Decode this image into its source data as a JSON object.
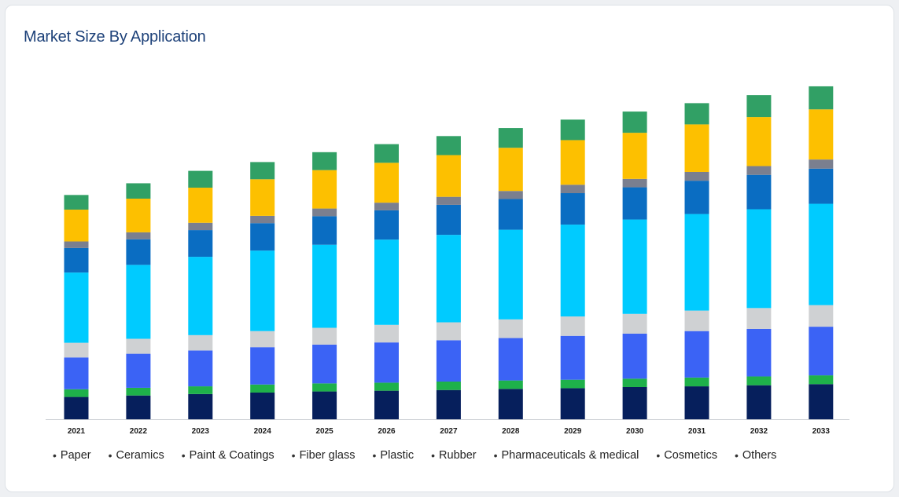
{
  "card": {
    "title": "Market Size By Application"
  },
  "chart_data": {
    "type": "bar",
    "stacked": true,
    "title": "Market Size By Application",
    "xlabel": "",
    "ylabel": "",
    "grid": false,
    "legend_position": "bottom",
    "ylim": [
      0,
      100
    ],
    "categories": [
      "2021",
      "2022",
      "2023",
      "2024",
      "2025",
      "2026",
      "2027",
      "2028",
      "2029",
      "2030",
      "2031",
      "2032",
      "2033"
    ],
    "series": [
      {
        "name": "Paper",
        "color": "#061f5c",
        "values": [
          6.1,
          6.5,
          6.9,
          7.3,
          7.6,
          7.8,
          8.0,
          8.3,
          8.5,
          8.8,
          9.0,
          9.3,
          9.6
        ]
      },
      {
        "name": "Ceramics",
        "color": "#1eb14a",
        "values": [
          2.1,
          2.1,
          2.1,
          2.2,
          2.2,
          2.2,
          2.3,
          2.3,
          2.3,
          2.3,
          2.4,
          2.4,
          2.4
        ]
      },
      {
        "name": "Paint & Coatings",
        "color": "#3b63f5",
        "values": [
          8.7,
          9.3,
          9.8,
          10.2,
          10.6,
          11.0,
          11.3,
          11.6,
          12.0,
          12.3,
          12.7,
          13.0,
          13.3
        ]
      },
      {
        "name": "Fiber glass",
        "color": "#cfd1d3",
        "values": [
          4.0,
          4.1,
          4.2,
          4.4,
          4.6,
          4.8,
          4.9,
          5.1,
          5.3,
          5.4,
          5.6,
          5.7,
          5.9
        ]
      },
      {
        "name": "Plastic",
        "color": "#00cbff",
        "values": [
          19.2,
          20.2,
          21.4,
          22.0,
          22.7,
          23.3,
          23.9,
          24.5,
          25.1,
          25.8,
          26.4,
          27.0,
          27.7
        ]
      },
      {
        "name": "Rubber",
        "color": "#0a6dc2",
        "values": [
          6.7,
          7.0,
          7.3,
          7.5,
          7.8,
          8.0,
          8.2,
          8.4,
          8.6,
          8.8,
          9.1,
          9.4,
          9.6
        ]
      },
      {
        "name": "Pharmaceuticals & medical",
        "color": "#7a7f8f",
        "values": [
          1.8,
          1.9,
          2.0,
          2.0,
          2.1,
          2.1,
          2.2,
          2.2,
          2.3,
          2.3,
          2.4,
          2.4,
          2.5
        ]
      },
      {
        "name": "Cosmetics",
        "color": "#fdc000",
        "values": [
          8.7,
          9.2,
          9.6,
          10.0,
          10.5,
          10.9,
          11.4,
          11.8,
          12.2,
          12.6,
          13.0,
          13.4,
          13.7
        ]
      },
      {
        "name": "Others",
        "color": "#31a065",
        "values": [
          4.0,
          4.2,
          4.6,
          4.7,
          4.9,
          5.1,
          5.2,
          5.4,
          5.6,
          5.8,
          5.8,
          6.0,
          6.3
        ]
      }
    ]
  }
}
